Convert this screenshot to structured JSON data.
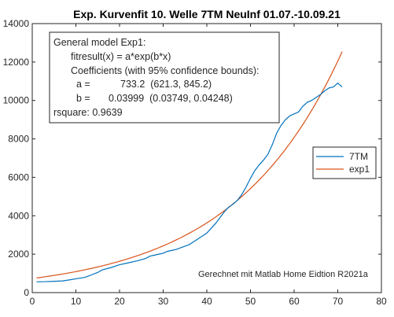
{
  "chart_data": {
    "type": "line",
    "title": "Exp. Kurvenfit 10. Welle 7TM NeuInf 01.07.-10.09.21",
    "xlabel": "",
    "ylabel": "",
    "xlim": [
      0,
      80
    ],
    "ylim": [
      0,
      14000
    ],
    "xticks": [
      "0",
      "10",
      "20",
      "30",
      "40",
      "50",
      "60",
      "70",
      "80"
    ],
    "yticks": [
      "0",
      "2000",
      "4000",
      "6000",
      "8000",
      "10000",
      "12000",
      "14000"
    ],
    "grid": false,
    "legend_placement": "right",
    "series": [
      {
        "name": "7TM",
        "color": "#0072BD",
        "x": [
          1,
          3,
          5,
          7,
          9,
          10,
          12,
          13,
          15,
          16,
          18,
          20,
          22,
          24,
          26,
          27,
          28,
          29,
          30,
          31,
          32,
          33,
          35,
          36,
          37,
          38,
          39,
          40,
          41,
          42,
          43,
          44,
          45,
          46,
          47,
          48,
          49,
          50,
          51,
          52,
          53,
          54,
          55,
          56,
          57,
          58,
          59,
          60,
          61,
          62,
          63,
          64,
          65,
          66,
          67,
          68,
          69,
          70,
          71
        ],
        "y": [
          560,
          570,
          590,
          610,
          680,
          720,
          790,
          870,
          1050,
          1180,
          1300,
          1450,
          1550,
          1650,
          1780,
          1900,
          1950,
          2000,
          2050,
          2150,
          2200,
          2250,
          2420,
          2500,
          2650,
          2800,
          2950,
          3100,
          3350,
          3600,
          3900,
          4200,
          4450,
          4600,
          4800,
          5100,
          5500,
          5950,
          6350,
          6650,
          6900,
          7200,
          7700,
          8300,
          8700,
          9000,
          9200,
          9300,
          9400,
          9700,
          9900,
          10000,
          10150,
          10300,
          10500,
          10650,
          10700,
          10900,
          10700
        ]
      },
      {
        "name": "exp1",
        "color": "#D95319",
        "a": 733.2,
        "b": 0.03999,
        "x_range": [
          1,
          71
        ]
      }
    ],
    "annotation": {
      "lines": [
        "General model Exp1:",
        "fitresult(x) = a*exp(b*x)",
        "Coefficients (with 95% confidence bounds):",
        "a =",
        "733.2  (621.3, 845.2)",
        "b =",
        "0.03999  (0.03749, 0.04248)",
        "rsquare: 0.9639"
      ]
    },
    "footnote": "Gerechnet mit Matlab Home Eidtion R2021a"
  }
}
